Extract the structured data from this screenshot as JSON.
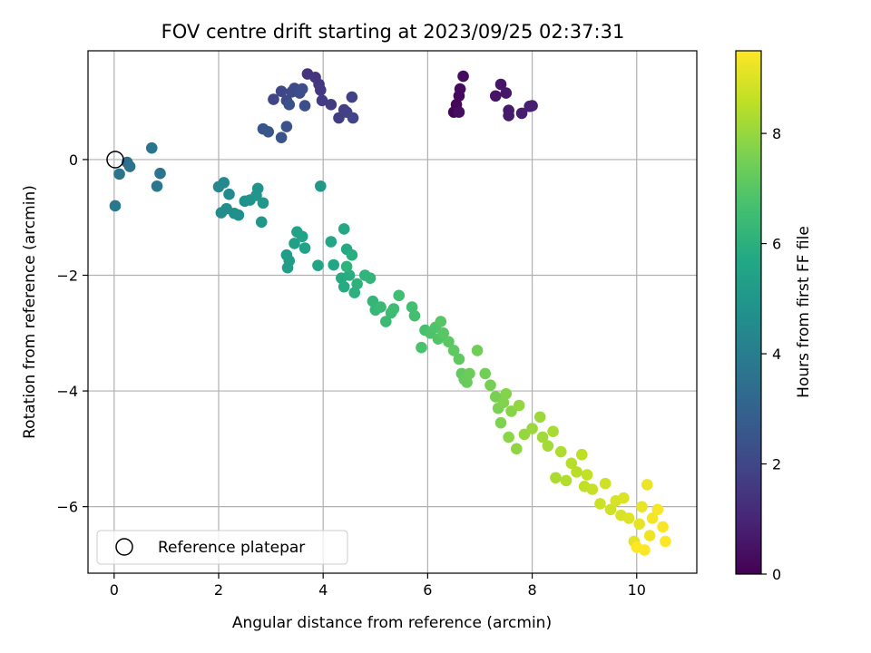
{
  "chart_data": {
    "type": "scatter",
    "title": "FOV centre drift starting at 2023/09/25 02:37:31",
    "xlabel": "Angular distance from reference (arcmin)",
    "ylabel": "Rotation from reference (arcmin)",
    "xlim": [
      -0.5,
      11.15
    ],
    "ylim": [
      -7.15,
      1.88
    ],
    "xticks": [
      0,
      2,
      4,
      6,
      8,
      10
    ],
    "yticks": [
      -6,
      -4,
      -2,
      0
    ],
    "grid": true,
    "legend": {
      "position": "lower-left",
      "entries": [
        "Reference platepar"
      ]
    },
    "colorbar": {
      "label": "Hours from first FF file",
      "colormap": "viridis",
      "range": [
        0,
        9.5
      ],
      "ticks": [
        0,
        2,
        4,
        6,
        8
      ]
    },
    "reference_point": {
      "x": 0,
      "y": 0
    },
    "points": [
      [
        6.5,
        0.82,
        0.1
      ],
      [
        6.55,
        0.95,
        0.15
      ],
      [
        6.6,
        1.1,
        0.2
      ],
      [
        6.62,
        1.22,
        0.25
      ],
      [
        6.68,
        1.44,
        0.3
      ],
      [
        6.6,
        0.82,
        0.35
      ],
      [
        7.3,
        1.1,
        0.5
      ],
      [
        7.4,
        1.3,
        0.55
      ],
      [
        7.5,
        1.15,
        0.6
      ],
      [
        7.55,
        0.85,
        0.65
      ],
      [
        7.55,
        0.76,
        0.7
      ],
      [
        7.8,
        0.8,
        0.75
      ],
      [
        7.95,
        0.92,
        0.8
      ],
      [
        8.0,
        0.93,
        0.85
      ],
      [
        3.7,
        1.48,
        1.4
      ],
      [
        3.85,
        1.42,
        1.45
      ],
      [
        3.92,
        1.3,
        1.5
      ],
      [
        3.95,
        1.2,
        1.55
      ],
      [
        3.98,
        1.02,
        1.6
      ],
      [
        4.15,
        0.95,
        1.65
      ],
      [
        4.3,
        0.72,
        1.7
      ],
      [
        4.4,
        0.86,
        1.75
      ],
      [
        4.45,
        0.82,
        1.8
      ],
      [
        4.55,
        1.08,
        1.85
      ],
      [
        4.57,
        0.72,
        1.9
      ],
      [
        3.05,
        1.04,
        1.95
      ],
      [
        3.2,
        1.18,
        2.0
      ],
      [
        3.3,
        1.02,
        2.05
      ],
      [
        3.4,
        1.17,
        2.1
      ],
      [
        3.45,
        1.23,
        2.15
      ],
      [
        3.55,
        1.15,
        2.2
      ],
      [
        3.6,
        1.22,
        2.25
      ],
      [
        3.65,
        0.93,
        2.3
      ],
      [
        3.35,
        0.95,
        2.35
      ],
      [
        3.3,
        0.57,
        2.4
      ],
      [
        3.2,
        0.38,
        2.45
      ],
      [
        2.85,
        0.53,
        2.5
      ],
      [
        2.95,
        0.48,
        2.55
      ],
      [
        0.25,
        -0.05,
        3.5
      ],
      [
        0.3,
        -0.12,
        3.55
      ],
      [
        0.1,
        -0.25,
        3.6
      ],
      [
        0.72,
        0.2,
        3.65
      ],
      [
        0.88,
        -0.24,
        3.7
      ],
      [
        0.82,
        -0.46,
        3.75
      ],
      [
        0.02,
        -0.8,
        3.8
      ],
      [
        2.0,
        -0.47,
        4.4
      ],
      [
        2.1,
        -0.4,
        4.45
      ],
      [
        2.2,
        -0.6,
        4.5
      ],
      [
        2.05,
        -0.92,
        4.55
      ],
      [
        2.15,
        -0.85,
        4.6
      ],
      [
        2.3,
        -0.93,
        4.65
      ],
      [
        2.38,
        -0.96,
        4.7
      ],
      [
        2.5,
        -0.72,
        4.75
      ],
      [
        2.6,
        -0.7,
        4.8
      ],
      [
        2.75,
        -0.5,
        4.85
      ],
      [
        2.72,
        -0.62,
        4.9
      ],
      [
        2.85,
        -0.75,
        4.95
      ],
      [
        2.82,
        -1.08,
        5.0
      ],
      [
        3.95,
        -0.46,
        5.1
      ],
      [
        3.3,
        -1.65,
        5.2
      ],
      [
        3.35,
        -1.75,
        5.25
      ],
      [
        3.32,
        -1.87,
        5.3
      ],
      [
        3.45,
        -1.45,
        5.35
      ],
      [
        3.5,
        -1.25,
        5.4
      ],
      [
        3.6,
        -1.33,
        5.45
      ],
      [
        3.65,
        -1.53,
        5.5
      ],
      [
        3.9,
        -1.83,
        5.55
      ],
      [
        4.15,
        -1.42,
        5.6
      ],
      [
        4.2,
        -1.82,
        5.65
      ],
      [
        4.4,
        -1.2,
        5.7
      ],
      [
        4.45,
        -1.55,
        5.75
      ],
      [
        4.35,
        -2.05,
        5.8
      ],
      [
        4.4,
        -2.2,
        5.85
      ],
      [
        4.5,
        -2.0,
        5.9
      ],
      [
        4.55,
        -1.65,
        5.95
      ],
      [
        4.6,
        -2.3,
        6.0
      ],
      [
        4.65,
        -2.15,
        6.05
      ],
      [
        4.45,
        -1.85,
        6.1
      ],
      [
        4.8,
        -2.0,
        6.15
      ],
      [
        4.9,
        -2.05,
        6.2
      ],
      [
        4.95,
        -2.45,
        6.25
      ],
      [
        5.0,
        -2.6,
        6.3
      ],
      [
        5.1,
        -2.55,
        6.35
      ],
      [
        5.2,
        -2.8,
        6.4
      ],
      [
        5.3,
        -2.65,
        6.45
      ],
      [
        5.35,
        -2.58,
        6.5
      ],
      [
        5.45,
        -2.35,
        6.55
      ],
      [
        5.7,
        -2.55,
        6.6
      ],
      [
        5.75,
        -2.7,
        6.65
      ],
      [
        5.95,
        -2.95,
        6.7
      ],
      [
        5.88,
        -3.25,
        6.75
      ],
      [
        6.05,
        -3.0,
        6.8
      ],
      [
        6.15,
        -2.9,
        6.85
      ],
      [
        6.2,
        -3.1,
        6.9
      ],
      [
        6.25,
        -2.8,
        6.95
      ],
      [
        6.3,
        -3.0,
        7.0
      ],
      [
        6.4,
        -3.15,
        7.05
      ],
      [
        6.5,
        -3.3,
        7.1
      ],
      [
        6.6,
        -3.45,
        7.15
      ],
      [
        6.65,
        -3.7,
        7.2
      ],
      [
        6.7,
        -3.8,
        7.25
      ],
      [
        6.75,
        -3.85,
        7.3
      ],
      [
        6.8,
        -3.7,
        7.35
      ],
      [
        6.95,
        -3.3,
        7.4
      ],
      [
        7.1,
        -3.7,
        7.45
      ],
      [
        7.2,
        -3.9,
        7.5
      ],
      [
        7.3,
        -4.1,
        7.55
      ],
      [
        7.35,
        -4.3,
        7.6
      ],
      [
        7.4,
        -4.55,
        7.65
      ],
      [
        7.45,
        -4.2,
        7.7
      ],
      [
        7.5,
        -4.05,
        7.75
      ],
      [
        7.6,
        -4.35,
        7.8
      ],
      [
        7.55,
        -4.8,
        7.85
      ],
      [
        7.7,
        -5.0,
        7.9
      ],
      [
        7.75,
        -4.25,
        7.95
      ],
      [
        7.85,
        -4.75,
        8.0
      ],
      [
        8.0,
        -4.65,
        8.05
      ],
      [
        8.15,
        -4.45,
        8.1
      ],
      [
        8.2,
        -4.8,
        8.15
      ],
      [
        8.3,
        -4.95,
        8.2
      ],
      [
        8.4,
        -4.7,
        8.25
      ],
      [
        8.45,
        -5.5,
        8.3
      ],
      [
        8.55,
        -5.05,
        8.35
      ],
      [
        8.65,
        -5.55,
        8.4
      ],
      [
        8.75,
        -5.25,
        8.45
      ],
      [
        8.85,
        -5.4,
        8.5
      ],
      [
        8.95,
        -5.1,
        8.55
      ],
      [
        9.0,
        -5.65,
        8.6
      ],
      [
        9.05,
        -5.45,
        8.65
      ],
      [
        9.15,
        -5.7,
        8.7
      ],
      [
        9.3,
        -5.95,
        8.75
      ],
      [
        9.4,
        -5.6,
        8.8
      ],
      [
        9.5,
        -6.05,
        8.85
      ],
      [
        9.6,
        -5.9,
        8.9
      ],
      [
        9.7,
        -6.15,
        8.95
      ],
      [
        9.75,
        -5.85,
        9.0
      ],
      [
        9.85,
        -6.2,
        9.05
      ],
      [
        9.95,
        -6.6,
        9.1
      ],
      [
        10.05,
        -6.3,
        9.15
      ],
      [
        10.1,
        -6.0,
        9.2
      ],
      [
        10.2,
        -5.62,
        9.25
      ],
      [
        10.25,
        -6.5,
        9.3
      ],
      [
        10.3,
        -6.2,
        9.35
      ],
      [
        10.4,
        -6.05,
        9.4
      ],
      [
        10.5,
        -6.35,
        9.42
      ],
      [
        10.55,
        -6.6,
        9.45
      ],
      [
        10.15,
        -6.75,
        9.47
      ],
      [
        10.0,
        -6.7,
        9.48
      ]
    ]
  }
}
